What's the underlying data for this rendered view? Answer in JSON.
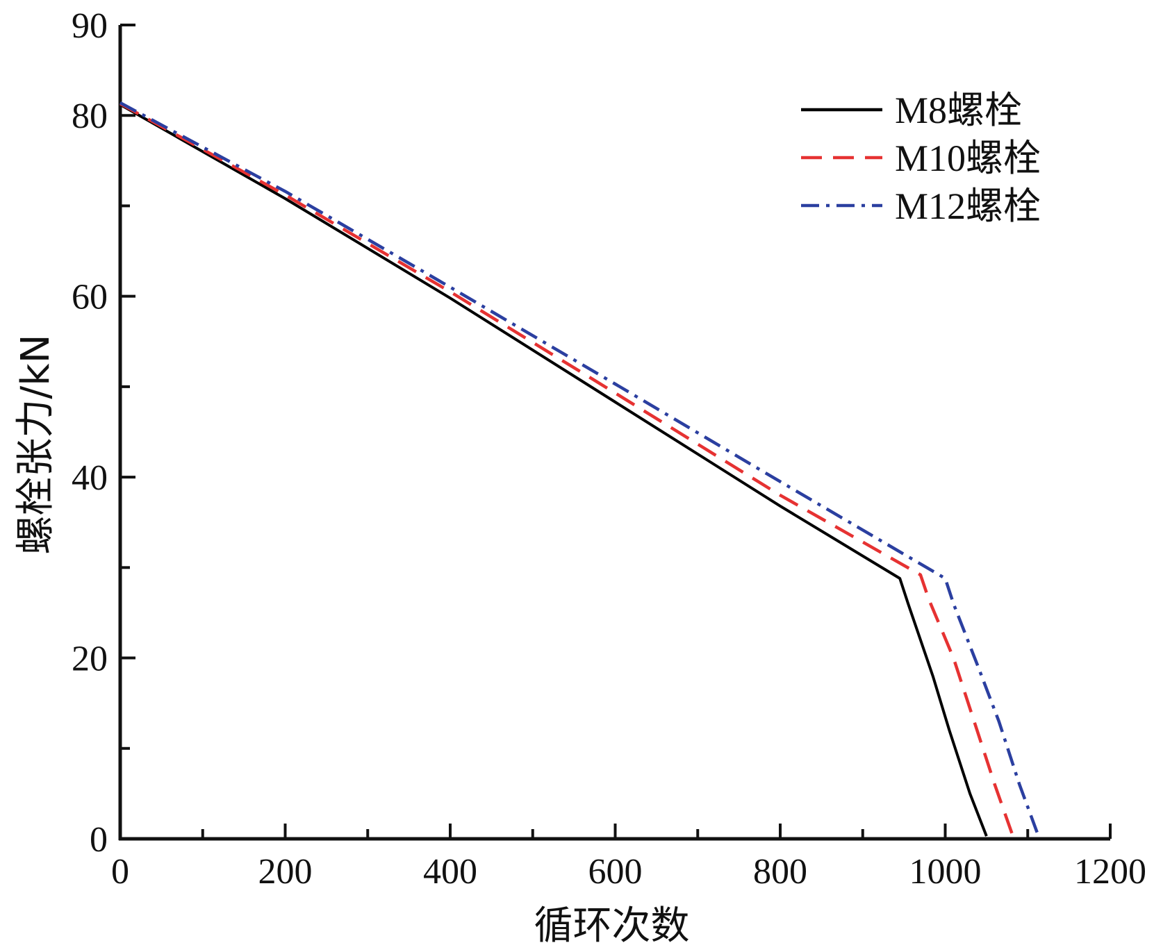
{
  "chart_data": {
    "type": "line",
    "title": "",
    "xlabel": "循环次数",
    "ylabel": "螺栓张力/kN",
    "xlim": [
      0,
      1200
    ],
    "ylim": [
      0,
      90
    ],
    "xticks": [
      0,
      200,
      400,
      600,
      800,
      1000,
      1200
    ],
    "yticks": [
      0,
      20,
      40,
      60,
      80,
      90
    ],
    "x_minor_step": 100,
    "y_minor_step": 10,
    "grid": false,
    "legend_position": "top-right",
    "series": [
      {
        "name": "M8螺栓",
        "color": "#000000",
        "style": "solid",
        "points": [
          [
            0,
            81.2
          ],
          [
            200,
            70.8
          ],
          [
            400,
            59.8
          ],
          [
            600,
            48.3
          ],
          [
            800,
            36.8
          ],
          [
            945,
            28.8
          ],
          [
            955,
            26.0
          ],
          [
            985,
            18.0
          ],
          [
            1005,
            12.0
          ],
          [
            1030,
            5.0
          ],
          [
            1050,
            0.3
          ]
        ]
      },
      {
        "name": "M10螺栓",
        "color": "#e63232",
        "style": "dashed",
        "points": [
          [
            0,
            81.3
          ],
          [
            200,
            71.2
          ],
          [
            400,
            60.5
          ],
          [
            600,
            49.3
          ],
          [
            800,
            38.0
          ],
          [
            970,
            29.2
          ],
          [
            980,
            26.5
          ],
          [
            1010,
            20.0
          ],
          [
            1035,
            13.0
          ],
          [
            1060,
            6.0
          ],
          [
            1082,
            0.3
          ]
        ]
      },
      {
        "name": "M12螺栓",
        "color": "#2b3fa0",
        "style": "dashdot",
        "points": [
          [
            0,
            81.4
          ],
          [
            200,
            71.6
          ],
          [
            400,
            61.0
          ],
          [
            600,
            50.3
          ],
          [
            800,
            39.5
          ],
          [
            1000,
            28.8
          ],
          [
            1010,
            26.0
          ],
          [
            1040,
            19.0
          ],
          [
            1065,
            13.0
          ],
          [
            1090,
            6.0
          ],
          [
            1113,
            0.3
          ]
        ]
      }
    ]
  }
}
